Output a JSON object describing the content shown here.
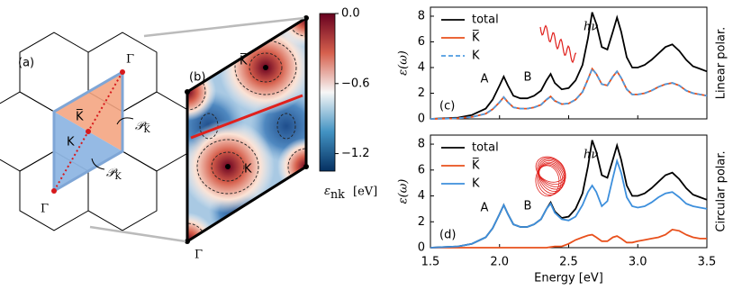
{
  "panel_a": {
    "label": "(a)",
    "gamma_top": "Γ",
    "gamma_bottom": "Γ",
    "k_bar": "K̅",
    "k": "K",
    "p_kbar": {
      "symbol": "𝒫",
      "sub": "K̅"
    },
    "p_k": {
      "symbol": "𝒫",
      "sub": "K"
    }
  },
  "panel_b": {
    "label": "(b)",
    "k_bar": "K̅",
    "k": "K",
    "gamma": "Γ",
    "colorbar": {
      "symbol": "ε",
      "sub": "nk",
      "unit": "[eV]",
      "lim": [
        -1.35,
        0
      ],
      "ticks": [
        {
          "value": 0,
          "label": "0.0"
        },
        {
          "value": -0.6,
          "label": "−0.6"
        },
        {
          "value": -1.2,
          "label": "−1.2"
        }
      ]
    }
  },
  "chart_data": [
    {
      "type": "line",
      "label": "(c)",
      "side_label": "Linear polar.",
      "ylabel": "ε(ω)",
      "photon": "hν",
      "annotations": [
        "A",
        "B"
      ],
      "legend": "upper left",
      "xtick_labels": false,
      "x": [
        1.5,
        1.6,
        1.7,
        1.8,
        1.9,
        1.95,
        2.0,
        2.03,
        2.06,
        2.1,
        2.15,
        2.2,
        2.25,
        2.3,
        2.34,
        2.37,
        2.4,
        2.45,
        2.5,
        2.55,
        2.6,
        2.64,
        2.67,
        2.7,
        2.74,
        2.78,
        2.82,
        2.85,
        2.88,
        2.92,
        2.96,
        3.0,
        3.05,
        3.1,
        3.15,
        3.2,
        3.25,
        3.3,
        3.35,
        3.4,
        3.45,
        3.5
      ],
      "xlim": [
        1.5,
        3.5
      ],
      "xticks": [
        1.5,
        2,
        2.5,
        3,
        3.5
      ],
      "ylim": [
        0,
        8.7
      ],
      "yticks": [
        0,
        2,
        4,
        6,
        8
      ],
      "series": [
        {
          "name": "total",
          "color": "#000000",
          "values": [
            0,
            0.05,
            0.1,
            0.3,
            0.8,
            1.5,
            2.6,
            3.3,
            2.6,
            1.8,
            1.6,
            1.6,
            1.8,
            2.2,
            3.0,
            3.5,
            2.8,
            2.3,
            2.4,
            3.0,
            4.2,
            6.3,
            8.3,
            7.4,
            5.6,
            5.4,
            6.8,
            7.9,
            6.8,
            4.8,
            4.0,
            4.0,
            4.2,
            4.6,
            5.1,
            5.6,
            5.8,
            5.3,
            4.6,
            4.1,
            3.9,
            3.7
          ]
        },
        {
          "name": "K̅",
          "color": "#e8501c",
          "values": [
            0,
            0.02,
            0.05,
            0.15,
            0.4,
            0.75,
            1.3,
            1.7,
            1.3,
            0.9,
            0.8,
            0.8,
            0.9,
            1.1,
            1.5,
            1.75,
            1.4,
            1.15,
            1.2,
            1.5,
            2.1,
            3.1,
            3.9,
            3.5,
            2.7,
            2.6,
            3.3,
            3.7,
            3.2,
            2.3,
            1.9,
            1.9,
            2.0,
            2.2,
            2.5,
            2.7,
            2.8,
            2.6,
            2.2,
            2.0,
            1.9,
            1.8
          ]
        },
        {
          "name": "K",
          "color": "#4f9be0",
          "dash": true,
          "values": [
            0,
            0.02,
            0.05,
            0.15,
            0.4,
            0.75,
            1.3,
            1.7,
            1.3,
            0.9,
            0.8,
            0.8,
            0.9,
            1.1,
            1.5,
            1.75,
            1.4,
            1.15,
            1.2,
            1.5,
            2.1,
            3.1,
            3.9,
            3.5,
            2.7,
            2.6,
            3.3,
            3.7,
            3.2,
            2.3,
            1.9,
            1.9,
            2.0,
            2.2,
            2.5,
            2.7,
            2.8,
            2.6,
            2.2,
            2.0,
            1.9,
            1.8
          ]
        }
      ]
    },
    {
      "type": "line",
      "label": "(d)",
      "side_label": "Circular polar.",
      "ylabel": "ε(ω)",
      "photon": "hν",
      "xlabel": "Energy [eV]",
      "annotations": [
        "A",
        "B"
      ],
      "legend": "upper left",
      "xtick_labels": true,
      "x": [
        1.5,
        1.6,
        1.7,
        1.8,
        1.9,
        1.95,
        2.0,
        2.03,
        2.06,
        2.1,
        2.15,
        2.2,
        2.25,
        2.3,
        2.34,
        2.37,
        2.4,
        2.45,
        2.5,
        2.55,
        2.6,
        2.64,
        2.67,
        2.7,
        2.74,
        2.78,
        2.82,
        2.85,
        2.88,
        2.92,
        2.96,
        3.0,
        3.05,
        3.1,
        3.15,
        3.2,
        3.25,
        3.3,
        3.35,
        3.4,
        3.45,
        3.5
      ],
      "xlim": [
        1.5,
        3.5
      ],
      "xticks": [
        1.5,
        {
          "value": 2,
          "label": "2.0"
        },
        2.5,
        {
          "value": 3,
          "label": "3.0"
        },
        3.5
      ],
      "ylim": [
        0,
        8.7
      ],
      "yticks": [
        0,
        2,
        4,
        6,
        8
      ],
      "series": [
        {
          "name": "total",
          "color": "#000000",
          "values": [
            0,
            0.05,
            0.1,
            0.3,
            0.8,
            1.5,
            2.6,
            3.3,
            2.6,
            1.8,
            1.6,
            1.6,
            1.8,
            2.2,
            3.0,
            3.5,
            2.8,
            2.3,
            2.4,
            3.0,
            4.2,
            6.3,
            8.3,
            7.4,
            5.6,
            5.4,
            6.8,
            7.9,
            6.8,
            4.8,
            4.0,
            4.0,
            4.2,
            4.6,
            5.1,
            5.6,
            5.8,
            5.3,
            4.6,
            4.1,
            3.9,
            3.7
          ]
        },
        {
          "name": "K̅",
          "color": "#e8501c",
          "values": [
            0,
            0,
            0,
            0,
            0,
            0,
            0,
            0,
            0,
            0,
            0,
            0,
            0,
            0,
            0,
            0.05,
            0.1,
            0.1,
            0.3,
            0.6,
            0.8,
            0.95,
            1.0,
            0.8,
            0.5,
            0.5,
            0.8,
            0.9,
            0.7,
            0.4,
            0.4,
            0.5,
            0.6,
            0.7,
            0.8,
            1.0,
            1.4,
            1.3,
            1.0,
            0.8,
            0.7,
            0.7
          ]
        },
        {
          "name": "K",
          "color": "#3d8fdc",
          "values": [
            0,
            0.05,
            0.1,
            0.3,
            0.8,
            1.5,
            2.6,
            3.3,
            2.6,
            1.8,
            1.6,
            1.6,
            1.8,
            2.2,
            3.0,
            3.4,
            2.7,
            2.2,
            2.1,
            2.4,
            3.3,
            4.3,
            4.8,
            4.3,
            3.2,
            3.6,
            5.4,
            6.7,
            5.8,
            3.9,
            3.2,
            3.1,
            3.2,
            3.5,
            3.9,
            4.2,
            4.3,
            3.9,
            3.4,
            3.2,
            3.1,
            3.0
          ]
        }
      ]
    }
  ]
}
